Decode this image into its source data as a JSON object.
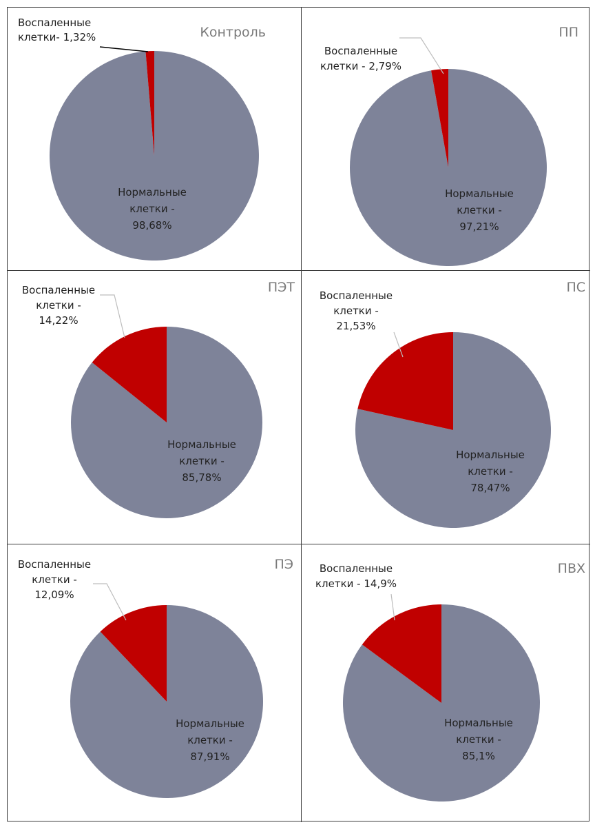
{
  "colors": {
    "normal": "#7e8399",
    "inflamed": "#c00000",
    "leader_dark": "#000000",
    "leader_light": "#bdbdbd"
  },
  "chart_data": [
    {
      "type": "pie",
      "title": "Контроль",
      "slices": [
        {
          "name": "inflamed",
          "value": 1.32,
          "label_lines": [
            "Воспаленные",
            "клетки- 1,32%"
          ]
        },
        {
          "name": "normal",
          "value": 98.68,
          "label_lines": [
            "Нормальные",
            "клетки -",
            "98,68%"
          ]
        }
      ]
    },
    {
      "type": "pie",
      "title": "ПП",
      "slices": [
        {
          "name": "inflamed",
          "value": 2.79,
          "label_lines": [
            "Воспаленные",
            "клетки - 2,79%"
          ]
        },
        {
          "name": "normal",
          "value": 97.21,
          "label_lines": [
            "Нормальные",
            "клетки -",
            "97,21%"
          ]
        }
      ]
    },
    {
      "type": "pie",
      "title": "ПЭТ",
      "slices": [
        {
          "name": "inflamed",
          "value": 14.22,
          "label_lines": [
            "Воспаленные",
            "клетки -",
            "14,22%"
          ]
        },
        {
          "name": "normal",
          "value": 85.78,
          "label_lines": [
            "Нормальные",
            "клетки -",
            "85,78%"
          ]
        }
      ]
    },
    {
      "type": "pie",
      "title": "ПС",
      "slices": [
        {
          "name": "inflamed",
          "value": 21.53,
          "label_lines": [
            "Воспаленные",
            "клетки -",
            "21,53%"
          ]
        },
        {
          "name": "normal",
          "value": 78.47,
          "label_lines": [
            "Нормальные",
            "клетки -",
            "78,47%"
          ]
        }
      ]
    },
    {
      "type": "pie",
      "title": "ПЭ",
      "slices": [
        {
          "name": "inflamed",
          "value": 12.09,
          "label_lines": [
            "Воспаленные",
            "клетки -",
            "12,09%"
          ]
        },
        {
          "name": "normal",
          "value": 87.91,
          "label_lines": [
            "Нормальные",
            "клетки -",
            "87,91%"
          ]
        }
      ]
    },
    {
      "type": "pie",
      "title": "ПВХ",
      "slices": [
        {
          "name": "inflamed",
          "value": 14.9,
          "label_lines": [
            "Воспаленные",
            "клетки - 14,9%"
          ]
        },
        {
          "name": "normal",
          "value": 85.1,
          "label_lines": [
            "Нормальные",
            "клетки -",
            "85,1%"
          ]
        }
      ]
    }
  ]
}
